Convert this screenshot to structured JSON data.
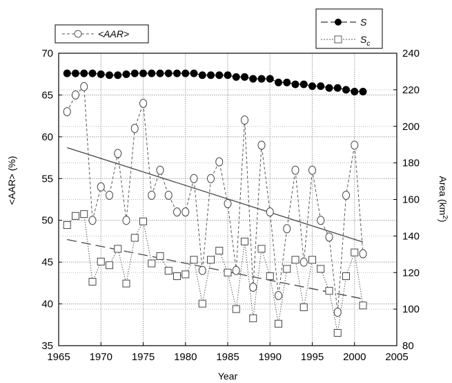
{
  "chart_data": {
    "type": "line",
    "title": "",
    "xlabel": "Year",
    "ylabel_left": "<AAR> (%)",
    "ylabel_right": "Area (km",
    "ylabel_right_sup": "2",
    "ylabel_right_close": ")",
    "xlim": [
      1965,
      2005
    ],
    "ylim_left": [
      35,
      70
    ],
    "ylim_right": [
      80,
      240
    ],
    "x_ticks": [
      "1965",
      "1970",
      "1975",
      "1980",
      "1985",
      "1990",
      "1995",
      "2000",
      "2005"
    ],
    "y_left_ticks": [
      "35",
      "40",
      "45",
      "50",
      "55",
      "60",
      "65",
      "70"
    ],
    "y_right_ticks": [
      "80",
      "100",
      "120",
      "140",
      "160",
      "180",
      "200",
      "220",
      "240"
    ],
    "grid": true,
    "legend_left": {
      "label": "<AAR>",
      "placement": "top-left"
    },
    "legend_right": {
      "labels": [
        "S",
        "S",
        "c"
      ],
      "placement": "top-right"
    },
    "series": [
      {
        "name": "<AAR>",
        "axis": "left",
        "marker": "circle-open",
        "line": "dashed",
        "x": [
          1966,
          1967,
          1968,
          1969,
          1970,
          1971,
          1972,
          1973,
          1974,
          1975,
          1976,
          1977,
          1978,
          1979,
          1980,
          1981,
          1982,
          1983,
          1984,
          1985,
          1986,
          1987,
          1988,
          1989,
          1990,
          1991,
          1992,
          1993,
          1994,
          1995,
          1996,
          1997,
          1998,
          1999,
          2000,
          2001
        ],
        "y": [
          63,
          65,
          66,
          50,
          54,
          53,
          58,
          50,
          61,
          64,
          53,
          56,
          53,
          51,
          51,
          55,
          44,
          55,
          57,
          52,
          44,
          62,
          42,
          59,
          51,
          41,
          49,
          56,
          45,
          56,
          50,
          48,
          39,
          53,
          59,
          46
        ]
      },
      {
        "name": "S",
        "axis": "right",
        "marker": "circle-filled",
        "line": "solid",
        "x": [
          1966,
          1967,
          1968,
          1969,
          1970,
          1971,
          1972,
          1973,
          1974,
          1975,
          1976,
          1977,
          1978,
          1979,
          1980,
          1981,
          1982,
          1983,
          1984,
          1985,
          1986,
          1987,
          1988,
          1989,
          1990,
          1991,
          1992,
          1993,
          1994,
          1995,
          1996,
          1997,
          1998,
          1999,
          2000,
          2001
        ],
        "y": [
          229,
          229,
          229,
          229,
          228.5,
          228,
          228,
          228.5,
          229,
          229,
          229,
          229,
          229,
          229,
          229,
          229,
          228,
          228,
          228,
          228,
          227,
          227,
          226,
          226,
          226,
          224,
          224,
          223,
          223,
          222,
          222,
          221,
          221,
          220,
          219,
          219
        ]
      },
      {
        "name": "Sc",
        "axis": "right",
        "marker": "square-open",
        "line": "dotted",
        "x": [
          1966,
          1967,
          1968,
          1969,
          1970,
          1971,
          1972,
          1973,
          1974,
          1975,
          1976,
          1977,
          1978,
          1979,
          1980,
          1981,
          1982,
          1983,
          1984,
          1985,
          1986,
          1987,
          1988,
          1989,
          1990,
          1991,
          1992,
          1993,
          1994,
          1995,
          1996,
          1997,
          1998,
          1999,
          2000,
          2001
        ],
        "y": [
          146,
          151,
          152,
          115,
          126,
          124,
          133,
          114,
          139,
          148,
          125,
          129,
          121,
          118,
          119,
          127,
          103,
          127,
          132,
          120,
          100,
          137,
          95,
          133,
          118,
          92,
          122,
          127,
          101,
          127,
          122,
          110,
          87,
          118,
          131,
          102
        ]
      }
    ],
    "trendlines": [
      {
        "series": "<AAR>",
        "axis": "left",
        "style": "solid",
        "x": [
          1966,
          2001
        ],
        "y": [
          58.7,
          47.4
        ]
      },
      {
        "series": "Sc",
        "axis": "left",
        "style": "long-dash",
        "x": [
          1966,
          2001
        ],
        "y": [
          47.7,
          40.6
        ]
      }
    ]
  }
}
